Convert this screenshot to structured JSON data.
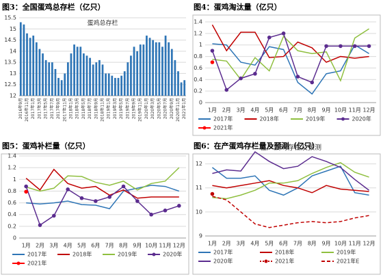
{
  "chart_data": [
    {
      "type": "bar",
      "title": "图3：全国蛋鸡总存栏（亿只）",
      "categories": [
        "2016年9月",
        null,
        "2016年11月",
        null,
        "2017年1月",
        null,
        "2017年3月",
        null,
        "2017年5月",
        null,
        "2017年7月",
        null,
        "2017年9月",
        null,
        "2017年11月",
        null,
        "2018年1月",
        null,
        "2018年3月",
        null,
        "2018年5月",
        null,
        "2018年7月",
        null,
        "2018年9月",
        null,
        "2018年11月",
        null,
        "2019年1月",
        null,
        "2019年3月",
        null,
        "2019年5月",
        null,
        "2019年7月",
        null,
        "2019年9月",
        null,
        "2019年11月",
        null,
        "2020年1月",
        null,
        "2020年3月",
        null,
        "2020年5月",
        null,
        "2020年7月",
        null,
        "2020年9月",
        null,
        "2020年11月",
        null,
        "2021年1月"
      ],
      "series": [
        {
          "name": "蛋鸡总存栏",
          "color": "#2e75b6",
          "values": [
            15.3,
            15.2,
            14.8,
            14.6,
            14.7,
            14.4,
            14.1,
            13.9,
            13.6,
            13.5,
            13.5,
            13.2,
            12.8,
            12.7,
            13.0,
            13.5,
            13.9,
            14.3,
            14.2,
            14.2,
            13.9,
            13.8,
            13.7,
            13.4,
            13.5,
            13.6,
            13.4,
            13.0,
            13.0,
            12.9,
            12.8,
            12.8,
            12.9,
            13.1,
            13.5,
            13.8,
            14.2,
            14.0,
            14.3,
            14.3,
            14.7,
            14.6,
            14.5,
            14.4,
            14.4,
            14.2,
            14.7,
            14.4,
            14.1,
            13.6,
            13.1,
            12.6,
            12.7
          ]
        }
      ],
      "ylim": [
        12,
        15.5
      ],
      "yticks": [
        12,
        12.5,
        13,
        13.5,
        14,
        14.5,
        15,
        15.5
      ],
      "grid": true
    },
    {
      "type": "line",
      "title": "图4：蛋鸡淘汰量（亿只）",
      "categories": [
        "1月",
        "2月",
        "3月",
        "4月",
        "5月",
        "6月",
        "7月",
        "8月",
        "9月",
        "10月",
        "11月",
        "12月"
      ],
      "series": [
        {
          "name": "2017年",
          "color": "#2e75b6",
          "values": [
            1.02,
            1.0,
            0.7,
            0.65,
            0.97,
            0.92,
            0.35,
            0.15,
            0.5,
            0.55,
            1.0,
            0.85
          ]
        },
        {
          "name": "2018年",
          "color": "#c00000",
          "values": [
            1.35,
            0.9,
            1.22,
            1.22,
            0.78,
            0.8,
            1.05,
            0.95,
            0.7,
            0.8,
            0.77,
            0.8
          ]
        },
        {
          "name": "2019年",
          "color": "#8fbf3f",
          "values": [
            0.75,
            0.72,
            0.4,
            0.78,
            0.55,
            1.15,
            0.9,
            0.85,
            0.88,
            0.38,
            1.12,
            1.28
          ]
        },
        {
          "name": "2020年",
          "color": "#5b2c8f",
          "marker": true,
          "values": [
            0.9,
            0.22,
            0.42,
            0.5,
            1.13,
            1.2,
            0.45,
            0.35,
            0.98,
            0.98,
            0.98,
            0.98
          ]
        },
        {
          "name": "2021年",
          "color": "#ff0000",
          "marker": true,
          "values": [
            0.7,
            null,
            null,
            null,
            null,
            null,
            null,
            null,
            null,
            null,
            null,
            null
          ]
        }
      ],
      "ylim": [
        0,
        1.4
      ],
      "yticks": [
        0,
        0.2,
        0.4,
        0.6,
        0.8,
        1,
        1.2,
        1.4
      ],
      "grid": true
    },
    {
      "type": "line",
      "title": "图5：蛋鸡补栏量（亿只）",
      "categories": [
        "1月",
        "2月",
        "3月",
        "4月",
        "5月",
        "6月",
        "7月",
        "8月",
        "9月",
        "10月",
        "11月",
        "12月"
      ],
      "series": [
        {
          "name": "2017年",
          "color": "#2e75b6",
          "values": [
            0.6,
            0.58,
            0.6,
            0.63,
            0.57,
            0.56,
            0.5,
            0.8,
            0.85,
            0.9,
            0.88,
            0.8
          ]
        },
        {
          "name": "2018年",
          "color": "#c00000",
          "values": [
            1.02,
            0.82,
            1.17,
            0.93,
            0.85,
            0.88,
            0.73,
            0.82,
            0.68,
            0.7,
            0.7,
            0.7
          ]
        },
        {
          "name": "2019年",
          "color": "#8fbf3f",
          "values": [
            0.87,
            0.8,
            0.85,
            1.06,
            1.05,
            0.95,
            0.9,
            0.97,
            0.82,
            0.93,
            0.97,
            1.2
          ]
        },
        {
          "name": "2020年",
          "color": "#5b2c8f",
          "marker": true,
          "values": [
            0.88,
            0.22,
            0.38,
            0.83,
            0.68,
            0.63,
            0.7,
            0.88,
            0.63,
            0.4,
            0.47,
            0.55
          ]
        },
        {
          "name": "2021年",
          "color": "#ff0000",
          "marker": true,
          "values": [
            0.79,
            null,
            null,
            null,
            null,
            null,
            null,
            null,
            null,
            null,
            null,
            null
          ]
        }
      ],
      "ylim": [
        0,
        1.4
      ],
      "yticks": [
        0,
        0.2,
        0.4,
        0.6,
        0.8,
        1,
        1.2,
        1.4
      ],
      "grid": true
    },
    {
      "type": "line",
      "title": "图6：在产蛋鸡存栏量及预测（亿只）",
      "subtitle": "在产蛋鸡存栏及预测",
      "categories": [
        "1月",
        "2月",
        "3月",
        "4月",
        "5月",
        "6月",
        "7月",
        "8月",
        "9月",
        "10月",
        "11月",
        "12月"
      ],
      "series": [
        {
          "name": "2017年",
          "color": "#2e75b6",
          "values": [
            11.85,
            11.4,
            11.4,
            11.5,
            10.9,
            10.7,
            11.0,
            11.5,
            11.7,
            11.9,
            10.8,
            10.7
          ]
        },
        {
          "name": "2018年",
          "color": "#c00000",
          "values": [
            11.1,
            11.0,
            11.1,
            11.2,
            11.3,
            11.1,
            11.0,
            10.8,
            11.1,
            10.95,
            10.9,
            10.85
          ]
        },
        {
          "name": "2019年",
          "color": "#8fbf3f",
          "values": [
            10.6,
            10.55,
            10.7,
            10.9,
            11.2,
            11.2,
            11.3,
            11.6,
            11.85,
            12.05,
            11.65,
            11.45
          ]
        },
        {
          "name": "2020年",
          "color": "#5b2c8f",
          "values": [
            11.6,
            11.75,
            11.7,
            12.5,
            12.1,
            11.8,
            11.9,
            12.3,
            12.1,
            11.85,
            11.35,
            10.9
          ]
        },
        {
          "name": "2021年",
          "color": "#c00000",
          "style": "dotted",
          "marker": true,
          "values": [
            10.75,
            null,
            null,
            null,
            null,
            null,
            null,
            null,
            null,
            null,
            null,
            null
          ]
        },
        {
          "name": "2021年E",
          "color": "#c00000",
          "style": "dashed",
          "values": [
            10.65,
            10.5,
            10.0,
            9.5,
            9.35,
            9.45,
            9.55,
            9.6,
            9.55,
            9.6,
            9.75,
            9.85
          ]
        }
      ],
      "ylim": [
        9,
        12.5
      ],
      "yticks": [
        9,
        10,
        11,
        12
      ],
      "grid": true
    }
  ]
}
